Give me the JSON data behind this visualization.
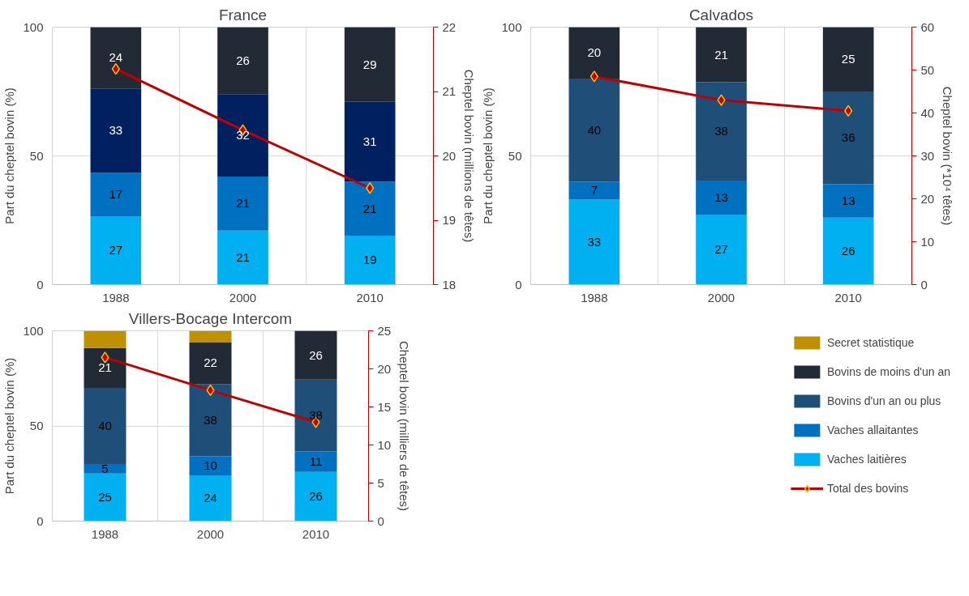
{
  "chart_data": [
    {
      "type": "bar",
      "stacked": true,
      "title": "France",
      "categories": [
        "1988",
        "2000",
        "2010"
      ],
      "ylabel": "Part du cheptel bovin (%)",
      "y2label": "Cheptel bovin (millions de têtes)",
      "ylim": [
        0,
        100
      ],
      "yticks": [
        0,
        50,
        100
      ],
      "y2lim": [
        18,
        22
      ],
      "y2ticks": [
        18,
        19,
        20,
        21,
        22
      ],
      "grid": true,
      "marker": "diamond",
      "series": [
        {
          "color": "#00b0f0",
          "values": [
            26.6,
            21,
            19
          ],
          "value_labels": [
            "27",
            "21",
            "19"
          ]
        },
        {
          "color": "#0070c0",
          "values": [
            16.8,
            21,
            21
          ],
          "value_labels": [
            "17",
            "21",
            "21"
          ]
        },
        {
          "color": "#002060",
          "values": [
            32.8,
            32,
            31
          ],
          "value_labels": [
            "33",
            "32",
            "31"
          ]
        },
        {
          "color": "#222a35",
          "values": [
            23.8,
            26,
            29
          ],
          "value_labels": [
            "24",
            "26",
            "29"
          ]
        },
        {
          "type": "line",
          "axis": "y2",
          "color": "#c00000",
          "values": [
            21.35,
            20.4,
            19.5
          ]
        }
      ]
    },
    {
      "type": "bar",
      "stacked": true,
      "title": "Calvados",
      "categories": [
        "1988",
        "2000",
        "2010"
      ],
      "ylabel": "Part du cheptel bovin (%)",
      "y2label": "Cheptel bovin (*10⁴ têtes)",
      "ylim": [
        0,
        100
      ],
      "yticks": [
        0,
        50,
        100
      ],
      "y2lim": [
        0,
        60
      ],
      "y2ticks": [
        0,
        10,
        20,
        30,
        40,
        50,
        60
      ],
      "grid": true,
      "marker": "diamond",
      "series": [
        {
          "color": "#00b0f0",
          "values": [
            33,
            27.2,
            26
          ],
          "value_labels": [
            "33",
            "27",
            "26"
          ]
        },
        {
          "color": "#0070c0",
          "values": [
            7,
            13.2,
            13
          ],
          "value_labels": [
            "7",
            "13",
            "13"
          ]
        },
        {
          "color": "#1f4e79",
          "values": [
            40,
            38.2,
            36
          ],
          "value_labels": [
            "40",
            "38",
            "36"
          ]
        },
        {
          "color": "#222a35",
          "values": [
            20,
            21.4,
            25
          ],
          "value_labels": [
            "20",
            "21",
            "25"
          ]
        },
        {
          "type": "line",
          "axis": "y2",
          "color": "#c00000",
          "values": [
            48.5,
            43,
            40.5
          ]
        }
      ]
    },
    {
      "type": "bar",
      "stacked": true,
      "title": "Villers-Bocage Intercom",
      "categories": [
        "1988",
        "2000",
        "2010"
      ],
      "ylabel": "Part du cheptel bovin (%)",
      "y2label": "Cheptel bovin (milliers de têtes)",
      "ylim": [
        0,
        100
      ],
      "yticks": [
        0,
        50,
        100
      ],
      "y2lim": [
        0,
        25
      ],
      "y2ticks": [
        0,
        5,
        10,
        15,
        20,
        25
      ],
      "grid": true,
      "marker": "diamond",
      "legend": "right",
      "series": [
        {
          "name": "Vaches laitières",
          "color": "#00b0f0",
          "values": [
            25,
            24,
            25.8
          ],
          "value_labels": [
            "25",
            "24",
            "26"
          ]
        },
        {
          "name": "Vaches allaitantes",
          "color": "#0070c0",
          "values": [
            5,
            10,
            10.8
          ],
          "value_labels": [
            "5",
            "10",
            "11"
          ]
        },
        {
          "name": "Bovins d'un an ou plus",
          "color": "#1f4e79",
          "values": [
            40,
            38,
            37.8
          ],
          "value_labels": [
            "40",
            "38",
            "38"
          ]
        },
        {
          "name": "Bovins de moins d'un an",
          "color": "#222a35",
          "values": [
            21,
            22,
            25.6
          ],
          "value_labels": [
            "21",
            "22",
            "26"
          ]
        },
        {
          "name": "Secret statistique",
          "color": "#bf9000",
          "values": [
            9,
            6,
            null
          ],
          "value_labels": [
            null,
            null,
            null
          ]
        },
        {
          "name": "Total des bovins",
          "type": "line",
          "axis": "y2",
          "color": "#c00000",
          "values": [
            21.5,
            17.2,
            13
          ]
        }
      ]
    }
  ]
}
